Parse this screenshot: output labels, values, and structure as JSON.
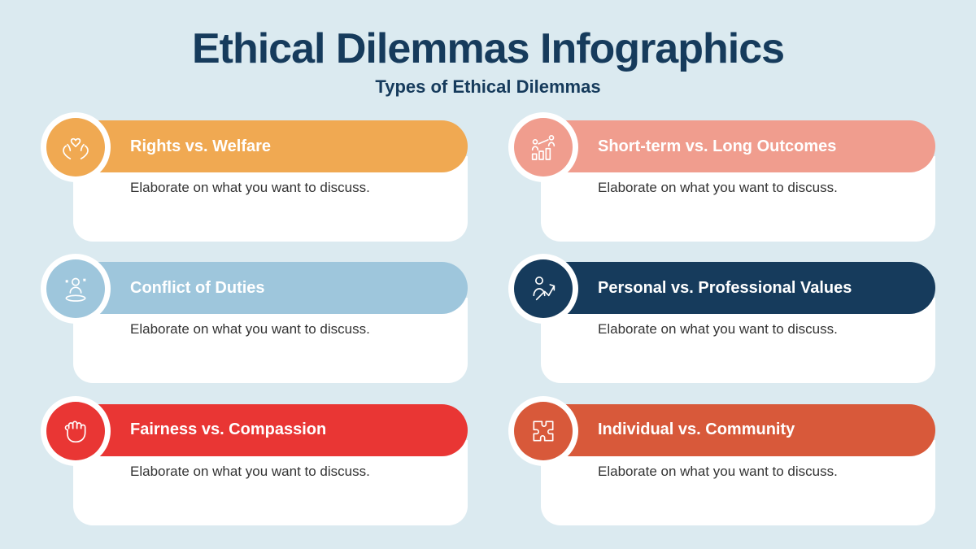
{
  "background_color": "#dbeaf0",
  "title": "Ethical Dilemmas Infographics",
  "subtitle": "Types of Ethical Dilemmas",
  "text_color": "#163b5c",
  "items": [
    {
      "label": "Rights vs. Welfare",
      "desc": "Elaborate on what you want to discuss.",
      "color": "#f0a952",
      "icon": "hands-heart"
    },
    {
      "label": "Short-term vs. Long Outcomes",
      "desc": "Elaborate on what you want to discuss.",
      "color": "#f09d8e",
      "icon": "growth-people"
    },
    {
      "label": "Conflict of Duties",
      "desc": "Elaborate on what you want to discuss.",
      "color": "#9ec6dc",
      "icon": "person-spot"
    },
    {
      "label": "Personal vs. Professional Values",
      "desc": "Elaborate on what you want to discuss.",
      "color": "#163b5c",
      "icon": "person-arrow"
    },
    {
      "label": "Fairness vs. Compassion",
      "desc": "Elaborate on what you want to discuss.",
      "color": "#e93634",
      "icon": "fist"
    },
    {
      "label": "Individual vs. Community",
      "desc": "Elaborate on what you want to discuss.",
      "color": "#d8593a",
      "icon": "puzzle"
    }
  ],
  "layout": {
    "columns": 2,
    "rows": 3,
    "card_radius": 32
  }
}
